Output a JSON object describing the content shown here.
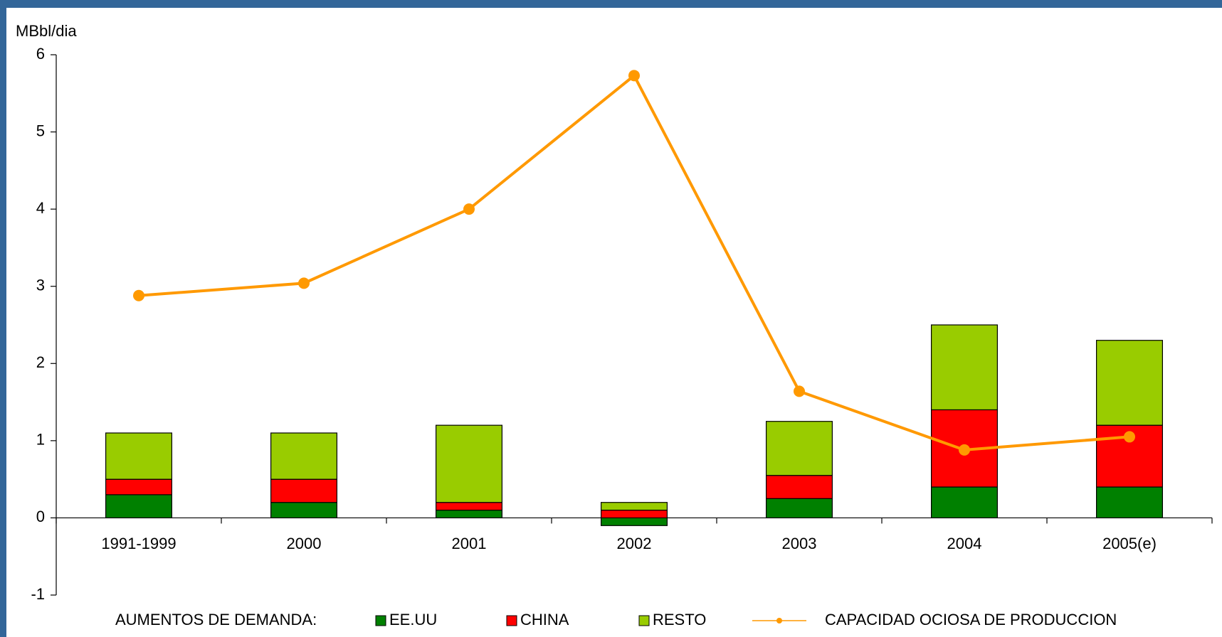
{
  "chart_data": {
    "type": "bar",
    "y_label": "MBbl/dia",
    "legend_title": "AUMENTOS DE DEMANDA:",
    "categories": [
      "1991-1999",
      "2000",
      "2001",
      "2002",
      "2003",
      "2004",
      "2005(e)"
    ],
    "series": [
      {
        "name": "EE.UU",
        "color": "#008000",
        "values": [
          0.3,
          0.2,
          0.1,
          -0.1,
          0.25,
          0.4,
          0.4
        ]
      },
      {
        "name": "CHINA",
        "color": "#ff0000",
        "values": [
          0.2,
          0.3,
          0.1,
          0.1,
          0.3,
          1.0,
          0.8
        ]
      },
      {
        "name": "RESTO",
        "color": "#99cc00",
        "values": [
          0.6,
          0.6,
          1.0,
          0.1,
          0.7,
          1.1,
          1.1
        ]
      },
      {
        "name": "CAPACIDAD OCIOSA  DE PRODUCCION",
        "type": "line",
        "color": "#ff9900",
        "values": [
          2.88,
          3.04,
          4.0,
          5.73,
          1.64,
          0.88,
          1.05
        ]
      }
    ],
    "stacked": true,
    "ylim": [
      -1,
      6
    ],
    "yticks": [
      -1,
      0,
      1,
      2,
      3,
      4,
      5,
      6
    ]
  }
}
